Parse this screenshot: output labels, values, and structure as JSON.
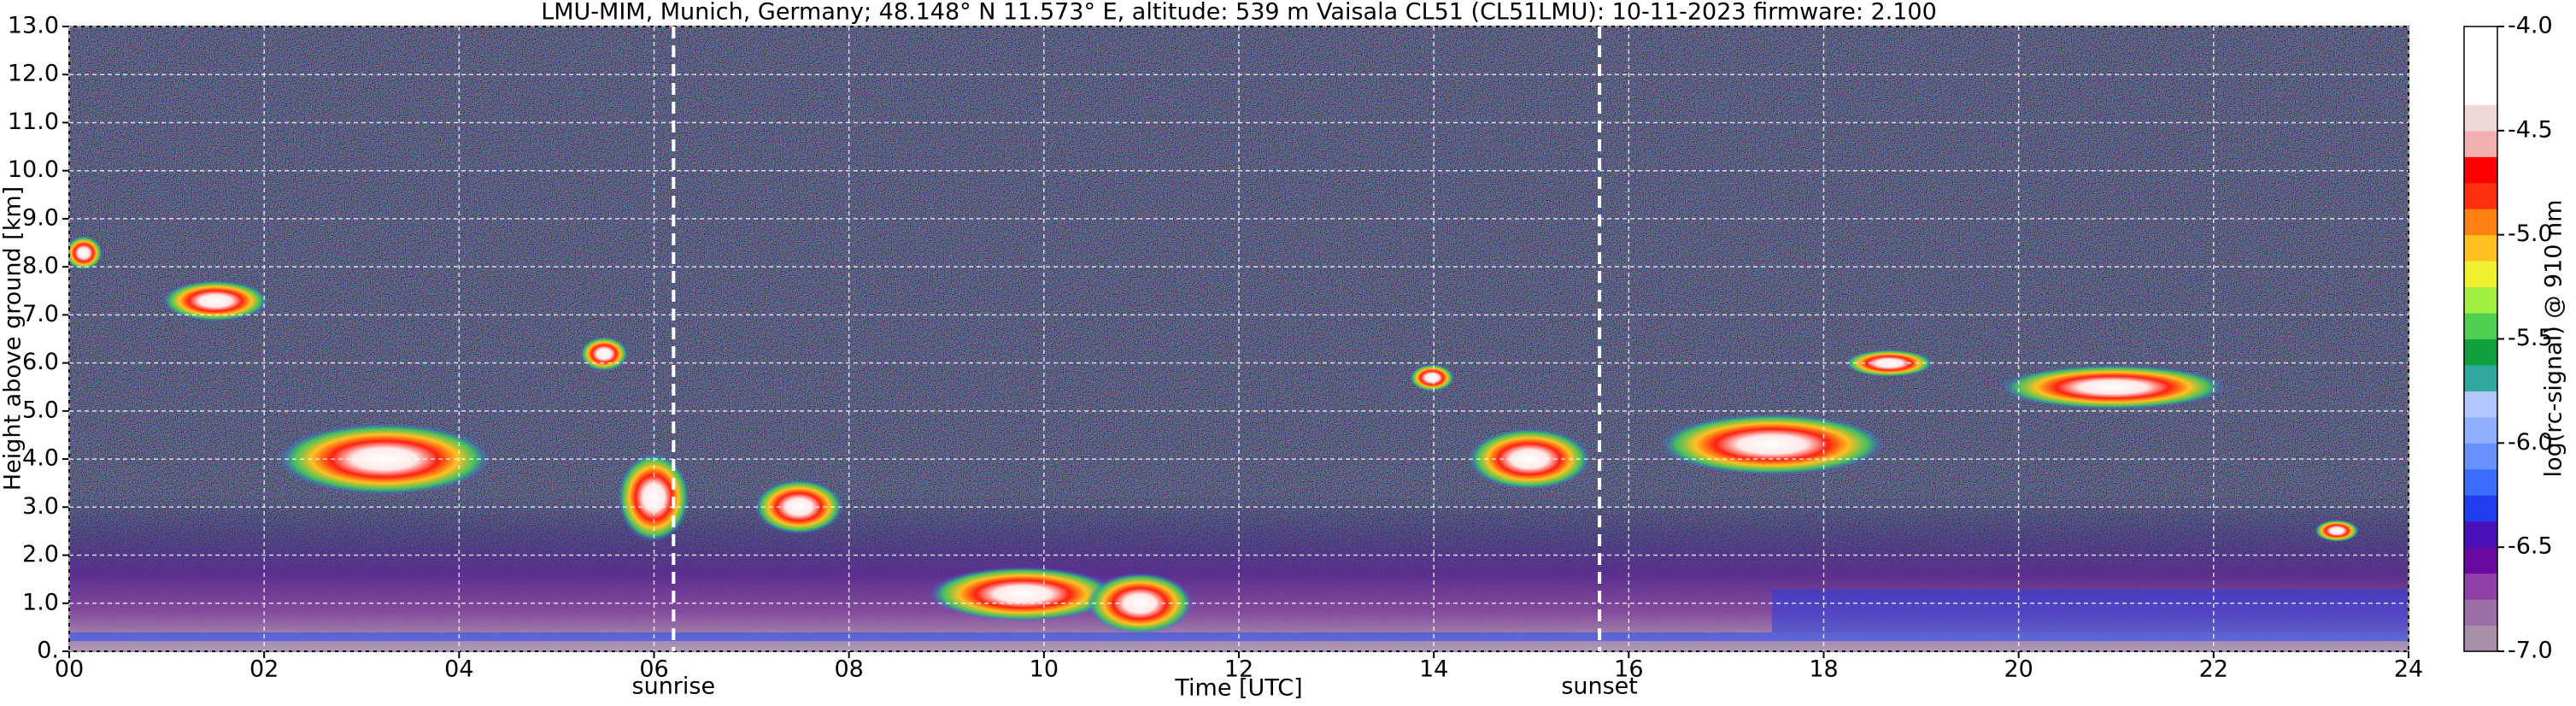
{
  "chart_data": {
    "type": "heatmap",
    "title": "LMU-MIM, Munich, Germany; 48.148° N 11.573° E, altitude: 539 m    Vaisala CL51 (CL51LMU): 10-11-2023    firmware: 2.100",
    "x_label": "Time [UTC]",
    "y_label": "Height above ground [km]",
    "xlim": [
      0,
      24
    ],
    "xticks": [
      {
        "value": 0,
        "label": "00"
      },
      {
        "value": 2,
        "label": "02"
      },
      {
        "value": 4,
        "label": "04"
      },
      {
        "value": 6,
        "label": "06"
      },
      {
        "value": 8,
        "label": "08"
      },
      10,
      12,
      14,
      16,
      18,
      20,
      22,
      24
    ],
    "ylim": [
      0,
      13
    ],
    "yticks": [
      {
        "value": 0,
        "label": "0."
      },
      {
        "value": 1,
        "label": "1.0"
      },
      {
        "value": 2,
        "label": "2.0"
      },
      {
        "value": 3,
        "label": "3.0"
      },
      {
        "value": 4,
        "label": "4.0"
      },
      {
        "value": 5,
        "label": "5.0"
      },
      {
        "value": 6,
        "label": "6.0"
      },
      {
        "value": 7,
        "label": "7.0"
      },
      {
        "value": 8,
        "label": "8.0"
      },
      {
        "value": 9,
        "label": "9.0"
      },
      {
        "value": 10,
        "label": "10.0"
      },
      {
        "value": 11,
        "label": "11.0"
      },
      {
        "value": 12,
        "label": "12.0"
      },
      {
        "value": 13,
        "label": "13.0"
      }
    ],
    "grid": true,
    "annotations": [
      {
        "x": 6.2,
        "label": "sunrise"
      },
      {
        "x": 15.7,
        "label": "sunset"
      }
    ],
    "colorbar": {
      "label": "log(rc-signal) @ 910 nm",
      "lim": [
        -7,
        -4
      ],
      "ticks": [
        {
          "value": -4,
          "label": "-4.0"
        },
        {
          "value": -4.5,
          "label": "-4.5"
        },
        {
          "value": -5,
          "label": "-5.0"
        },
        {
          "value": -5.5,
          "label": "-5.5"
        },
        {
          "value": -6,
          "label": "-6.0"
        },
        {
          "value": -6.5,
          "label": "-6.5"
        },
        {
          "value": -7,
          "label": "-7.0"
        }
      ],
      "colors": [
        "#a890a8",
        "#9c6ea6",
        "#8e40a8",
        "#6a0aa0",
        "#4a10b8",
        "#1f3cf0",
        "#3c6cff",
        "#6890ff",
        "#90b0ff",
        "#b0c8ff",
        "#30a8a0",
        "#10a040",
        "#50d050",
        "#a0f040",
        "#f0f030",
        "#ffc020",
        "#ff8010",
        "#ff3010",
        "#ff0000",
        "#f0b0b0",
        "#f0d8d8",
        "#ffffff",
        "#ffffff",
        "#ffffff"
      ]
    }
  }
}
